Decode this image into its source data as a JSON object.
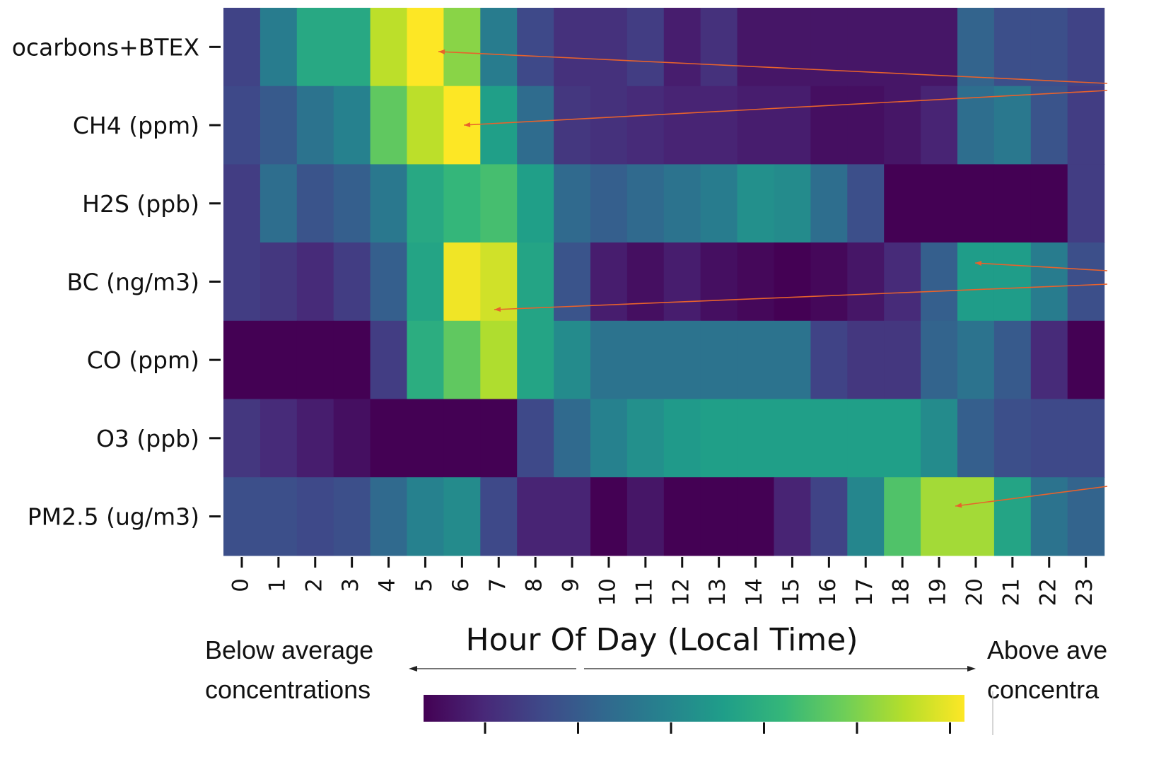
{
  "chart_data": {
    "type": "heatmap",
    "title": "",
    "xlabel": "Hour Of Day (Local Time)",
    "ylabel": "",
    "x": [
      "0",
      "1",
      "2",
      "3",
      "4",
      "5",
      "6",
      "7",
      "8",
      "9",
      "10",
      "11",
      "12",
      "13",
      "14",
      "15",
      "16",
      "17",
      "18",
      "19",
      "20",
      "21",
      "22",
      "23"
    ],
    "rows": [
      "Hydrocarbons+BTEX",
      "CH4 (ppm)",
      "H2S (ppb)",
      "BC (ng/m3)",
      "CO (ppm)",
      "O3 (ppb)",
      "PM2.5 (ug/m3)"
    ],
    "row_labels_visible": [
      "ocarbons+BTEX",
      "CH4 (ppm)",
      "H2S (ppb)",
      "BC (ng/m3)",
      "CO (ppm)",
      "O3 (ppb)",
      "PM2.5 (ug/m3)"
    ],
    "values": [
      [
        0.2,
        0.42,
        0.6,
        0.6,
        0.9,
        1.0,
        0.82,
        0.42,
        0.22,
        0.14,
        0.14,
        0.18,
        0.08,
        0.14,
        0.06,
        0.06,
        0.06,
        0.06,
        0.06,
        0.06,
        0.32,
        0.24,
        0.24,
        0.2
      ],
      [
        0.22,
        0.28,
        0.38,
        0.44,
        0.75,
        0.9,
        1.0,
        0.56,
        0.35,
        0.16,
        0.14,
        0.12,
        0.1,
        0.1,
        0.08,
        0.08,
        0.04,
        0.04,
        0.06,
        0.1,
        0.36,
        0.4,
        0.26,
        0.18
      ],
      [
        0.18,
        0.36,
        0.26,
        0.3,
        0.4,
        0.6,
        0.66,
        0.7,
        0.56,
        0.34,
        0.3,
        0.34,
        0.38,
        0.42,
        0.5,
        0.48,
        0.36,
        0.24,
        0.0,
        0.0,
        0.0,
        0.0,
        0.0,
        0.18
      ],
      [
        0.18,
        0.16,
        0.12,
        0.18,
        0.3,
        0.58,
        0.98,
        0.93,
        0.58,
        0.26,
        0.08,
        0.04,
        0.08,
        0.04,
        0.02,
        0.0,
        0.02,
        0.06,
        0.12,
        0.3,
        0.55,
        0.55,
        0.42,
        0.24
      ],
      [
        0.0,
        0.0,
        0.0,
        0.0,
        0.18,
        0.62,
        0.75,
        0.88,
        0.58,
        0.48,
        0.38,
        0.38,
        0.38,
        0.38,
        0.38,
        0.38,
        0.2,
        0.16,
        0.16,
        0.32,
        0.38,
        0.28,
        0.12,
        0.0
      ],
      [
        0.16,
        0.12,
        0.08,
        0.04,
        0.0,
        0.0,
        0.0,
        0.0,
        0.22,
        0.34,
        0.44,
        0.5,
        0.54,
        0.56,
        0.56,
        0.56,
        0.56,
        0.56,
        0.56,
        0.48,
        0.3,
        0.24,
        0.22,
        0.22
      ],
      [
        0.24,
        0.24,
        0.22,
        0.24,
        0.34,
        0.44,
        0.48,
        0.22,
        0.1,
        0.1,
        0.0,
        0.06,
        0.0,
        0.0,
        0.0,
        0.1,
        0.2,
        0.46,
        0.72,
        0.86,
        0.86,
        0.58,
        0.38,
        0.32
      ]
    ],
    "colormap": "viridis",
    "annotations": {
      "left_text": "Below average\nconcentrations",
      "right_text": "Above ave\nconcentra"
    },
    "arrow_color": "#e8622c",
    "colorbar_ticks": 6
  }
}
